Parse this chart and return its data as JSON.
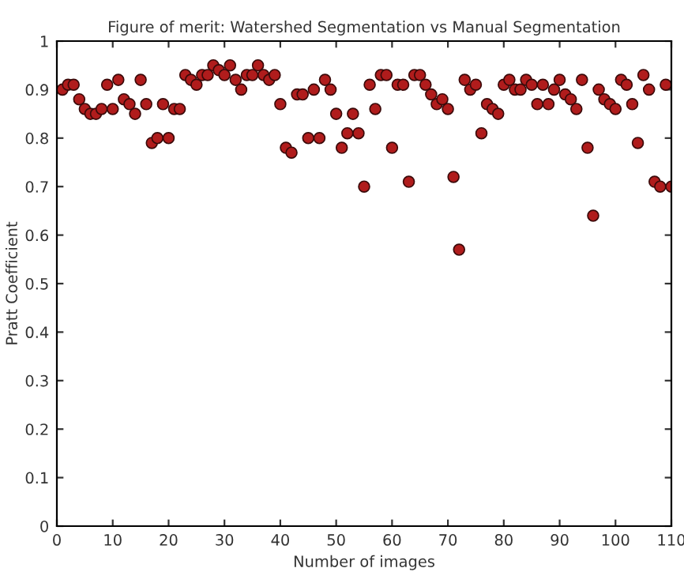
{
  "chart_data": {
    "type": "scatter",
    "title": "Figure of merit: Watershed Segmentation vs Manual Segmentation",
    "xlabel": "Number of images",
    "ylabel": "Pratt Coefficient",
    "x": [
      1,
      2,
      3,
      4,
      5,
      6,
      7,
      8,
      9,
      10,
      11,
      12,
      13,
      14,
      15,
      16,
      17,
      18,
      19,
      20,
      21,
      22,
      23,
      24,
      25,
      26,
      27,
      28,
      29,
      30,
      31,
      32,
      33,
      34,
      35,
      36,
      37,
      38,
      39,
      40,
      41,
      42,
      43,
      44,
      45,
      46,
      47,
      48,
      49,
      50,
      51,
      52,
      53,
      54,
      55,
      56,
      57,
      58,
      59,
      60,
      61,
      62,
      63,
      64,
      65,
      66,
      67,
      68,
      69,
      70,
      71,
      72,
      73,
      74,
      75,
      76,
      77,
      78,
      79,
      80,
      81,
      82,
      83,
      84,
      85,
      86,
      87,
      88,
      89,
      90,
      91,
      92,
      93,
      94,
      95,
      96,
      97,
      98,
      99,
      100,
      101,
      102,
      103,
      104,
      105,
      106,
      107,
      108,
      109,
      110
    ],
    "series": [
      {
        "color": "#b01c1c",
        "values": [
          0.9,
          0.91,
          0.91,
          0.88,
          0.86,
          0.85,
          0.85,
          0.86,
          0.91,
          0.86,
          0.92,
          0.88,
          0.87,
          0.85,
          0.92,
          0.87,
          0.79,
          0.8,
          0.87,
          0.8,
          0.86,
          0.86,
          0.93,
          0.92,
          0.91,
          0.93,
          0.93,
          0.95,
          0.94,
          0.93,
          0.95,
          0.92,
          0.9,
          0.93,
          0.93,
          0.95,
          0.93,
          0.92,
          0.93,
          0.87,
          0.78,
          0.77,
          0.89,
          0.89,
          0.8,
          0.9,
          0.8,
          0.92,
          0.9,
          0.85,
          0.78,
          0.81,
          0.85,
          0.81,
          0.7,
          0.91,
          0.86,
          0.93,
          0.93,
          0.78,
          0.91,
          0.91,
          0.71,
          0.93,
          0.93,
          0.91,
          0.89,
          0.87,
          0.88,
          0.86,
          0.72,
          0.57,
          0.92,
          0.9,
          0.91,
          0.81,
          0.87,
          0.86,
          0.85,
          0.91,
          0.92,
          0.9,
          0.9,
          0.92,
          0.91,
          0.87,
          0.91,
          0.87,
          0.9,
          0.92,
          0.89,
          0.88,
          0.86,
          0.92,
          0.78,
          0.64,
          0.9,
          0.88,
          0.87,
          0.86,
          0.92,
          0.91,
          0.87,
          0.79,
          0.93,
          0.9,
          0.71,
          0.7,
          0.91,
          0.7
        ]
      }
    ],
    "xlim": [
      0,
      110
    ],
    "xticks": [
      0,
      10,
      20,
      30,
      40,
      50,
      60,
      70,
      80,
      90,
      100,
      110
    ],
    "ylim": [
      0,
      1
    ],
    "yticks": [
      0,
      0.1,
      0.2,
      0.3,
      0.4,
      0.5,
      0.6,
      0.7,
      0.8,
      0.9,
      1
    ],
    "marker": "circle",
    "grid": false,
    "legend": false
  }
}
